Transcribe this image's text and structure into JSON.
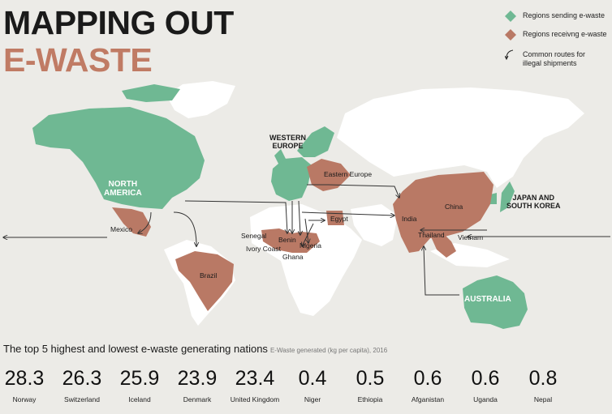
{
  "title": {
    "line1": "MAPPING OUT",
    "line2": "E-WASTE"
  },
  "colors": {
    "sending": "#6fb893",
    "receiving": "#b97965",
    "land": "#ffffff",
    "background": "#ecebe7",
    "title_accent": "#c07b64"
  },
  "legend": {
    "sending": "Regions sending e-waste",
    "receiving": "Regions receivng e-waste",
    "routes_line1": "Common routes for",
    "routes_line2": "illegal shipments"
  },
  "map_labels": {
    "north_america_line1": "NORTH",
    "north_america_line2": "AMERICA",
    "western_europe_line1": "WESTERN",
    "western_europe_line2": "EUROPE",
    "japan_line1": "JAPAN AND",
    "japan_line2": "SOUTH KOREA",
    "australia": "AUSTRALIA",
    "eastern_europe": "Eastern Europe",
    "mexico": "Mexico",
    "brazil": "Brazil",
    "senegal": "Senegal",
    "benin": "Benin",
    "nigeria": "Nigeria",
    "ivory_coast": "Ivory Coast",
    "ghana": "Ghana",
    "egypt": "Egypt",
    "india": "India",
    "china": "China",
    "thailand": "Thailand",
    "vietnam": "Vietnam"
  },
  "stats": {
    "title": "The top 5 highest and lowest e-waste generating nations",
    "unit_note": "E-Waste generated (kg per capita), 2016",
    "items": [
      {
        "value": "28.3",
        "country": "Norway"
      },
      {
        "value": "26.3",
        "country": "Switzerland"
      },
      {
        "value": "25.9",
        "country": "Iceland"
      },
      {
        "value": "23.9",
        "country": "Denmark"
      },
      {
        "value": "23.4",
        "country": "United Kingdom"
      },
      {
        "value": "0.4",
        "country": "Niger"
      },
      {
        "value": "0.5",
        "country": "Ethiopia"
      },
      {
        "value": "0.6",
        "country": "Afganistan"
      },
      {
        "value": "0.6",
        "country": "Uganda"
      },
      {
        "value": "0.8",
        "country": "Nepal"
      }
    ]
  }
}
